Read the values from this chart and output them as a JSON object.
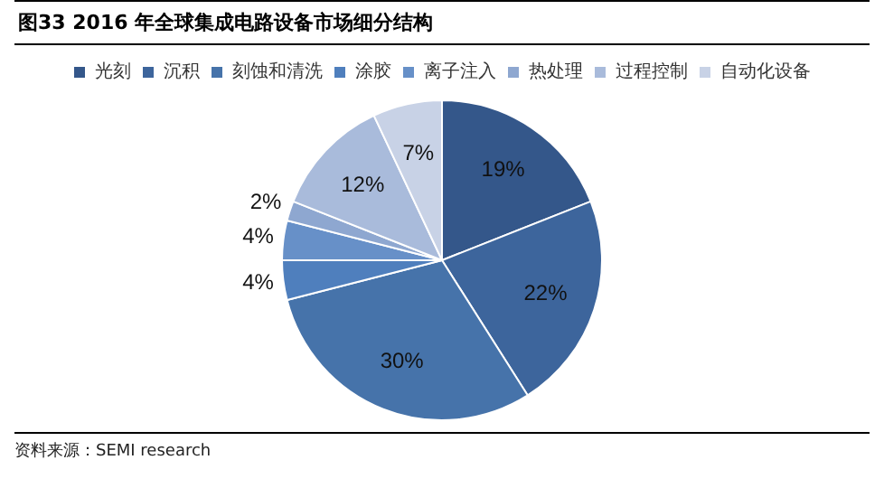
{
  "chart_data": {
    "type": "pie",
    "title": "图33 2016 年全球集成电路设备市场细分结构",
    "categories": [
      "光刻",
      "沉积",
      "刻蚀和清洗",
      "涂胶",
      "离子注入",
      "热处理",
      "过程控制",
      "自动化设备"
    ],
    "values": [
      19,
      22,
      30,
      4,
      4,
      2,
      12,
      7
    ],
    "value_labels": [
      "19%",
      "22%",
      "30%",
      "4%",
      "4%",
      "2%",
      "12%",
      "7%"
    ],
    "colors": [
      "#34578a",
      "#3d659c",
      "#4673aa",
      "#4f7fbd",
      "#6790c8",
      "#8ea7d0",
      "#a9bbdb",
      "#c8d2e6"
    ],
    "legend": "top",
    "annotations": [
      "资料来源：SEMI research"
    ]
  }
}
